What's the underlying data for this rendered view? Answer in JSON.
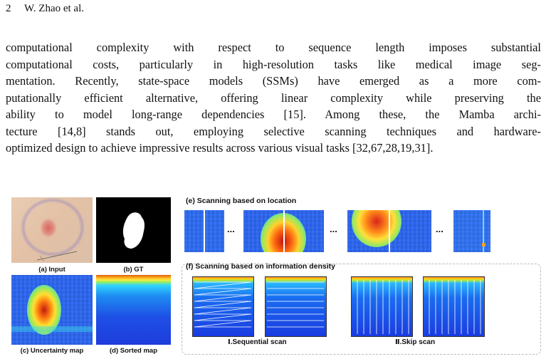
{
  "header": {
    "page_number": "2",
    "authors": "W. Zhao et al."
  },
  "paragraph_lines": [
    "computational complexity with respect to sequence length imposes substantial",
    "computational costs, particularly in high-resolution tasks like medical image seg-",
    "mentation. Recently, state-space models (SSMs) have emerged as a more com-",
    "putationally efficient alternative, offering linear complexity while preserving the",
    "ability to model long-range dependencies [15]. Among these, the Mamba archi-",
    "tecture [14,8] stands out, employing selective scanning techniques and hardware-",
    "optimized design to achieve impressive results across various visual tasks [32,67,28,19,31]."
  ],
  "figure": {
    "captions": {
      "a": "(a) Input",
      "b": "(b) GT",
      "c": "(c) Uncertainty map",
      "d": "(d) Sorted map"
    },
    "location_title": "(e) Scanning based on location",
    "density_title": "(f) Scanning based on information density",
    "ellipsis": "...",
    "scan_labels": {
      "sequential": "Ⅰ.Sequential scan",
      "skip": "Ⅱ.Skip scan"
    }
  }
}
